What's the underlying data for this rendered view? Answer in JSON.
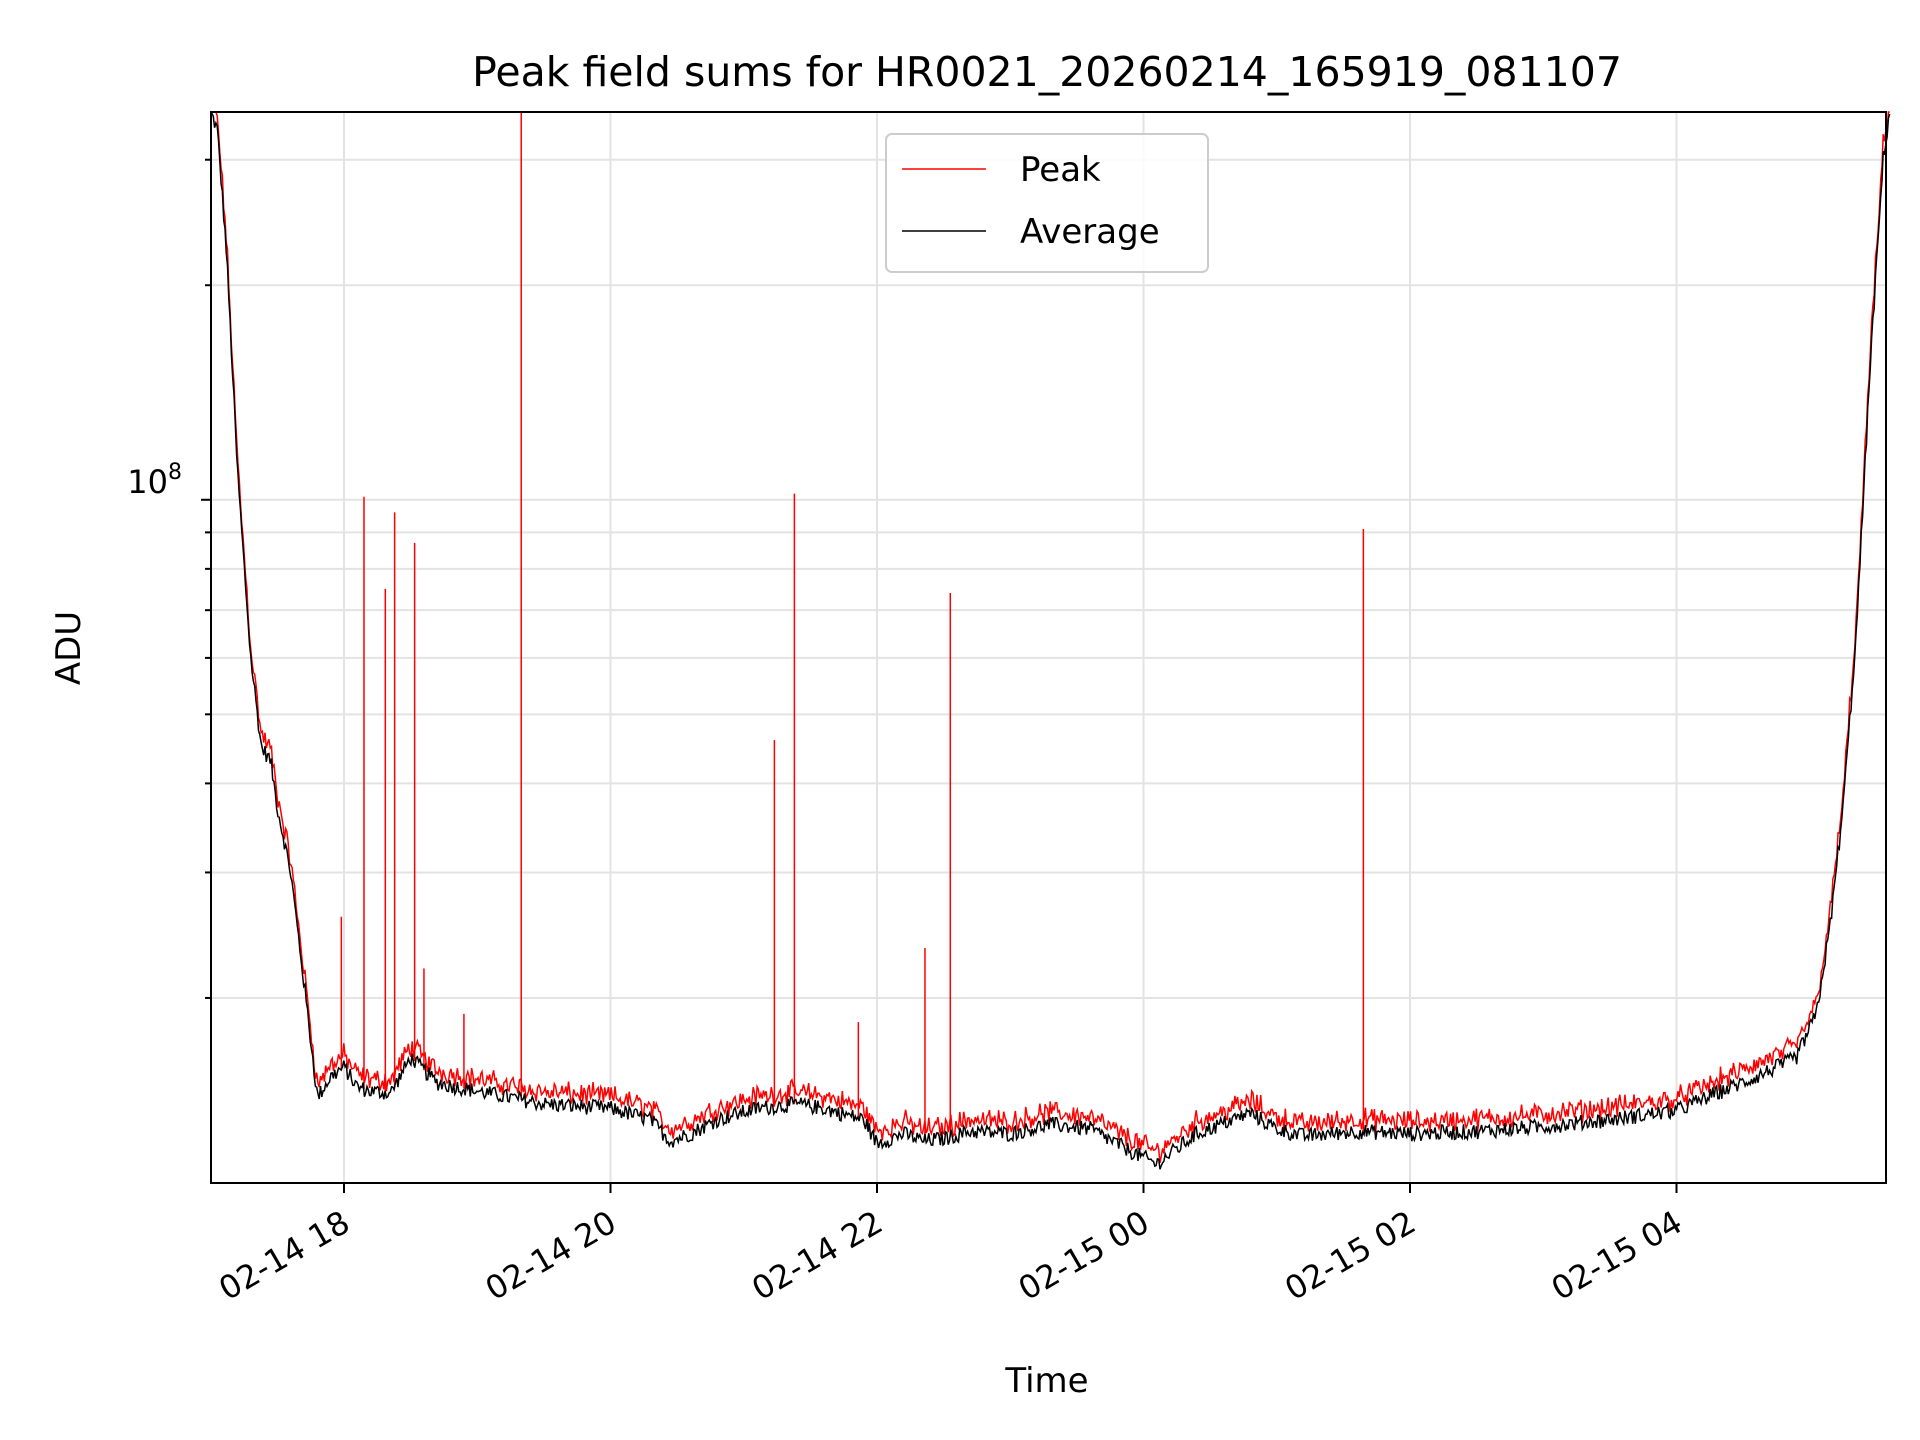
{
  "chart_data": {
    "type": "line",
    "title": "Peak field sums for HR0021_20260214_165919_081107",
    "xlabel": "Time",
    "ylabel": "ADU",
    "yscale": "log",
    "ylim": [
      11000000,
      350000000
    ],
    "xlim_hours": [
      17.0,
      29.6
    ],
    "grid": true,
    "legend_position": "top-center",
    "x_ticks": [
      {
        "hour": 18,
        "label": "02-14 18"
      },
      {
        "hour": 20,
        "label": "02-14 20"
      },
      {
        "hour": 22,
        "label": "02-14 22"
      },
      {
        "hour": 24,
        "label": "02-15 00"
      },
      {
        "hour": 26,
        "label": "02-15 02"
      },
      {
        "hour": 28,
        "label": "02-15 04"
      }
    ],
    "y_major_tick": {
      "value": 100000000,
      "label_base": "10",
      "label_exp": "8"
    },
    "y_minor_ticks": [
      20000000,
      30000000,
      40000000,
      50000000,
      60000000,
      70000000,
      80000000,
      90000000,
      200000000,
      300000000
    ],
    "series": [
      {
        "name": "Average",
        "color": "#000000",
        "points": [
          [
            17.0,
            350000000
          ],
          [
            17.05,
            330000000
          ],
          [
            17.12,
            220000000
          ],
          [
            17.2,
            110000000
          ],
          [
            17.3,
            60000000
          ],
          [
            17.38,
            45000000
          ],
          [
            17.45,
            43000000
          ],
          [
            17.5,
            37000000
          ],
          [
            17.6,
            30000000
          ],
          [
            17.7,
            21000000
          ],
          [
            17.8,
            14500000
          ],
          [
            17.9,
            15500000
          ],
          [
            18.0,
            16000000
          ],
          [
            18.1,
            15000000
          ],
          [
            18.2,
            14800000
          ],
          [
            18.35,
            14700000
          ],
          [
            18.5,
            16500000
          ],
          [
            18.7,
            15200000
          ],
          [
            19.0,
            14800000
          ],
          [
            19.5,
            14200000
          ],
          [
            20.0,
            14000000
          ],
          [
            20.3,
            13500000
          ],
          [
            20.45,
            12600000
          ],
          [
            20.6,
            12900000
          ],
          [
            20.8,
            13500000
          ],
          [
            21.1,
            14000000
          ],
          [
            21.4,
            14200000
          ],
          [
            21.6,
            14000000
          ],
          [
            21.9,
            13500000
          ],
          [
            22.0,
            12500000
          ],
          [
            22.2,
            12900000
          ],
          [
            22.35,
            12600000
          ],
          [
            22.5,
            12700000
          ],
          [
            22.7,
            13000000
          ],
          [
            23.0,
            12900000
          ],
          [
            23.3,
            13300000
          ],
          [
            23.6,
            13100000
          ],
          [
            23.9,
            12200000
          ],
          [
            24.1,
            11700000
          ],
          [
            24.4,
            12900000
          ],
          [
            24.8,
            13800000
          ],
          [
            25.0,
            13100000
          ],
          [
            25.2,
            12800000
          ],
          [
            25.6,
            13000000
          ],
          [
            26.0,
            12900000
          ],
          [
            26.5,
            13000000
          ],
          [
            27.0,
            13200000
          ],
          [
            27.5,
            13500000
          ],
          [
            28.0,
            13900000
          ],
          [
            28.3,
            14700000
          ],
          [
            28.6,
            15500000
          ],
          [
            28.9,
            16500000
          ],
          [
            29.05,
            19000000
          ],
          [
            29.15,
            25000000
          ],
          [
            29.25,
            37000000
          ],
          [
            29.35,
            65000000
          ],
          [
            29.45,
            150000000
          ],
          [
            29.55,
            300000000
          ],
          [
            29.6,
            350000000
          ]
        ]
      },
      {
        "name": "Peak",
        "color": "#ff0000",
        "spikes": [
          [
            17.98,
            26000000
          ],
          [
            18.15,
            101000000
          ],
          [
            18.31,
            75000000
          ],
          [
            18.38,
            96000000
          ],
          [
            18.53,
            87000000
          ],
          [
            18.6,
            22000000
          ],
          [
            18.9,
            19000000
          ],
          [
            19.33,
            350000000
          ],
          [
            21.23,
            46000000
          ],
          [
            21.38,
            102000000
          ],
          [
            21.86,
            18500000
          ],
          [
            22.36,
            23500000
          ],
          [
            22.55,
            74000000
          ],
          [
            25.65,
            91000000
          ]
        ]
      }
    ]
  }
}
